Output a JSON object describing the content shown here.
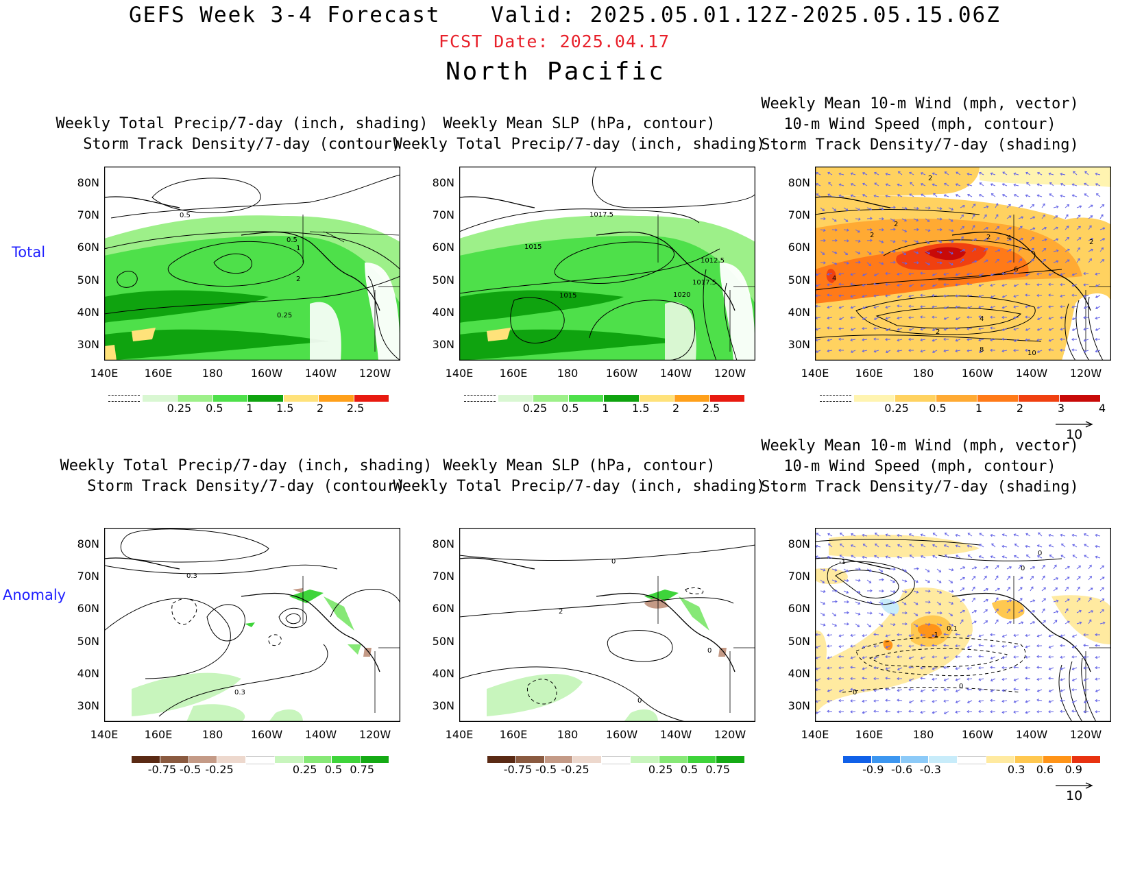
{
  "header": {
    "title": "GEFS Week 3-4 Forecast",
    "valid": "Valid: 2025.05.01.12Z-2025.05.15.06Z",
    "fcst_date": "FCST Date: 2025.04.17",
    "region": "North Pacific"
  },
  "rows": {
    "total": "Total",
    "anomaly": "Anomaly"
  },
  "titles": {
    "precip_storm": "Weekly Total Precip/7-day (inch, shading)\nStorm Track Density/7-day (contour)",
    "slp_precip": "Weekly Mean SLP (hPa, contour)\nWeekly Total Precip/7-day (inch, shading)",
    "wind_storm": "Weekly Mean 10-m Wind (mph, vector)\n10-m Wind Speed (mph, contour)\nStorm Track Density/7-day (shading)"
  },
  "axes": {
    "lat_labels": [
      "80N",
      "70N",
      "60N",
      "50N",
      "40N",
      "30N"
    ],
    "lon_labels": [
      "140E",
      "160E",
      "180",
      "160W",
      "140W",
      "120W"
    ]
  },
  "colorbars": {
    "precip_total": {
      "labels": [
        "0.25",
        "0.5",
        "1",
        "1.5",
        "2",
        "2.5"
      ],
      "colors": [
        "#d9f7d2",
        "#9df089",
        "#4ee04a",
        "#0fa30f",
        "#ffe27a",
        "#ffa01a",
        "#e81a10"
      ]
    },
    "storm_total": {
      "labels": [
        "0.25",
        "0.5",
        "1",
        "2",
        "3",
        "4"
      ],
      "colors": [
        "#fff4b0",
        "#ffd260",
        "#ffaa33",
        "#ff7a18",
        "#f04010",
        "#c80a08"
      ]
    },
    "precip_anom": {
      "labels": [
        "-0.75",
        "-0.5",
        "-0.25",
        "0.25",
        "0.5",
        "0.75"
      ],
      "colors": [
        "#5a2a14",
        "#8a5a40",
        "#c49a86",
        "#edd8cd",
        "#ffffff",
        "#c8f5bd",
        "#86e876",
        "#3ed43a",
        "#14aa14"
      ]
    },
    "storm_anom": {
      "labels": [
        "-0.9",
        "-0.6",
        "-0.3",
        "0.3",
        "0.6",
        "0.9"
      ],
      "colors": [
        "#1060e8",
        "#3c96f0",
        "#8ccaf8",
        "#c8ecfa",
        "#ffffff",
        "#ffeaa0",
        "#ffc850",
        "#ff9418",
        "#e83210"
      ]
    }
  },
  "vector_ref": "10",
  "contour_labels": {
    "p1": [
      "0.5",
      "0.5",
      "1",
      "2",
      "0.25"
    ],
    "p2": [
      "1017.5",
      "1015",
      "1012.5",
      "1017.5",
      "1015",
      "1020"
    ],
    "p3": [
      "2",
      "2",
      "2",
      "2",
      "4",
      "4",
      "6",
      "2",
      "4",
      "8",
      "10",
      "2"
    ],
    "p4": [
      "0.3",
      "0.3"
    ],
    "p5": [
      "0",
      "2",
      "0",
      "0"
    ],
    "p6": [
      "0",
      "-1",
      "0",
      "-1",
      "0.1",
      "0",
      "0"
    ]
  }
}
